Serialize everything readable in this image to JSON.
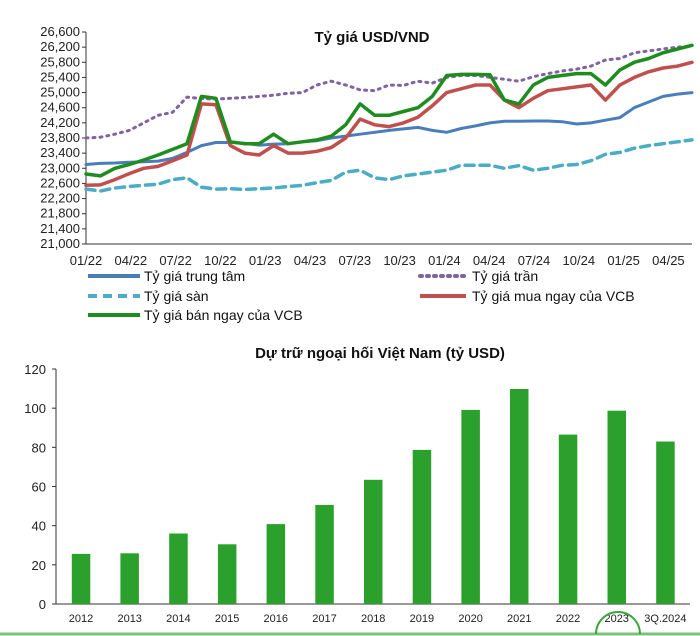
{
  "chart_data": [
    {
      "type": "line",
      "title": "Tỷ giá USD/VND",
      "x_tick_labels": [
        "01/22",
        "04/22",
        "07/22",
        "10/22",
        "01/23",
        "04/23",
        "07/23",
        "10/23",
        "01/24",
        "04/24",
        "07/24",
        "10/24",
        "01/25",
        "04/25"
      ],
      "y_tick_labels": [
        "21,000",
        "21,400",
        "21,800",
        "22,200",
        "22,600",
        "23,000",
        "23,400",
        "23,800",
        "24,200",
        "24,600",
        "25,000",
        "25,400",
        "25,800",
        "26,200",
        "26,600"
      ],
      "ylim": [
        21000,
        26600
      ],
      "grid": false,
      "legend_position": "bottom",
      "series": [
        {
          "name": "Tỷ giá trung tâm",
          "color": "#4a7ebb",
          "style": "solid",
          "values": [
            [
              0,
              23100
            ],
            [
              1,
              23130
            ],
            [
              2,
              23140
            ],
            [
              3,
              23160
            ],
            [
              4,
              23170
            ],
            [
              5,
              23190
            ],
            [
              6,
              23260
            ],
            [
              7,
              23420
            ],
            [
              8,
              23600
            ],
            [
              9,
              23680
            ],
            [
              10,
              23680
            ],
            [
              11,
              23660
            ],
            [
              12,
              23610
            ],
            [
              13,
              23640
            ],
            [
              14,
              23650
            ],
            [
              15,
              23700
            ],
            [
              16,
              23730
            ],
            [
              17,
              23800
            ],
            [
              18,
              23850
            ],
            [
              19,
              23900
            ],
            [
              20,
              23950
            ],
            [
              21,
              24000
            ],
            [
              22,
              24040
            ],
            [
              23,
              24080
            ],
            [
              24,
              24000
            ],
            [
              25,
              23950
            ],
            [
              26,
              24050
            ],
            [
              27,
              24120
            ],
            [
              28,
              24200
            ],
            [
              29,
              24240
            ],
            [
              30,
              24240
            ],
            [
              31,
              24250
            ],
            [
              32,
              24250
            ],
            [
              33,
              24230
            ],
            [
              34,
              24170
            ],
            [
              35,
              24200
            ],
            [
              36,
              24270
            ],
            [
              37,
              24340
            ],
            [
              38,
              24600
            ],
            [
              39,
              24750
            ],
            [
              40,
              24900
            ],
            [
              41,
              24960
            ],
            [
              42,
              25000
            ]
          ]
        },
        {
          "name": "Tỷ giá trần",
          "color": "#8064a2",
          "style": "dotted",
          "values": [
            [
              0,
              23800
            ],
            [
              1,
              23820
            ],
            [
              2,
              23900
            ],
            [
              3,
              24000
            ],
            [
              4,
              24200
            ],
            [
              5,
              24400
            ],
            [
              6,
              24480
            ],
            [
              7,
              24880
            ],
            [
              8,
              24840
            ],
            [
              9,
              24830
            ],
            [
              10,
              24850
            ],
            [
              11,
              24870
            ],
            [
              12,
              24900
            ],
            [
              13,
              24930
            ],
            [
              14,
              24980
            ],
            [
              15,
              25000
            ],
            [
              16,
              25200
            ],
            [
              17,
              25300
            ],
            [
              18,
              25200
            ],
            [
              19,
              25070
            ],
            [
              20,
              25050
            ],
            [
              21,
              25200
            ],
            [
              22,
              25190
            ],
            [
              23,
              25300
            ],
            [
              24,
              25250
            ],
            [
              25,
              25400
            ],
            [
              26,
              25450
            ],
            [
              27,
              25450
            ],
            [
              28,
              25400
            ],
            [
              29,
              25350
            ],
            [
              30,
              25300
            ],
            [
              31,
              25420
            ],
            [
              32,
              25500
            ],
            [
              33,
              25570
            ],
            [
              34,
              25620
            ],
            [
              35,
              25700
            ],
            [
              36,
              25860
            ],
            [
              37,
              25900
            ],
            [
              38,
              26050
            ],
            [
              39,
              26100
            ],
            [
              40,
              26150
            ],
            [
              41,
              26200
            ],
            [
              42,
              26220
            ]
          ]
        },
        {
          "name": "Tỷ giá sàn",
          "color": "#4bacc6",
          "style": "dashed",
          "values": [
            [
              0,
              22450
            ],
            [
              1,
              22400
            ],
            [
              2,
              22480
            ],
            [
              3,
              22520
            ],
            [
              4,
              22550
            ],
            [
              5,
              22580
            ],
            [
              6,
              22700
            ],
            [
              7,
              22750
            ],
            [
              8,
              22500
            ],
            [
              9,
              22450
            ],
            [
              10,
              22460
            ],
            [
              11,
              22440
            ],
            [
              12,
              22460
            ],
            [
              13,
              22480
            ],
            [
              14,
              22520
            ],
            [
              15,
              22550
            ],
            [
              16,
              22620
            ],
            [
              17,
              22680
            ],
            [
              18,
              22900
            ],
            [
              19,
              22950
            ],
            [
              20,
              22750
            ],
            [
              21,
              22700
            ],
            [
              22,
              22800
            ],
            [
              23,
              22850
            ],
            [
              24,
              22900
            ],
            [
              25,
              22950
            ],
            [
              26,
              23080
            ],
            [
              27,
              23080
            ],
            [
              28,
              23080
            ],
            [
              29,
              23000
            ],
            [
              30,
              23070
            ],
            [
              31,
              22950
            ],
            [
              32,
              23000
            ],
            [
              33,
              23080
            ],
            [
              34,
              23100
            ],
            [
              35,
              23200
            ],
            [
              36,
              23370
            ],
            [
              37,
              23420
            ],
            [
              38,
              23530
            ],
            [
              39,
              23600
            ],
            [
              40,
              23650
            ],
            [
              41,
              23700
            ],
            [
              42,
              23750
            ]
          ]
        },
        {
          "name": "Tỷ giá mua ngay của VCB",
          "color": "#c0504d",
          "style": "solid",
          "values": [
            [
              0,
              22550
            ],
            [
              1,
              22560
            ],
            [
              2,
              22700
            ],
            [
              3,
              22860
            ],
            [
              4,
              23000
            ],
            [
              5,
              23050
            ],
            [
              6,
              23200
            ],
            [
              7,
              23350
            ],
            [
              8,
              24700
            ],
            [
              9,
              24680
            ],
            [
              10,
              23600
            ],
            [
              11,
              23400
            ],
            [
              12,
              23350
            ],
            [
              13,
              23600
            ],
            [
              14,
              23400
            ],
            [
              15,
              23400
            ],
            [
              16,
              23450
            ],
            [
              17,
              23550
            ],
            [
              18,
              23800
            ],
            [
              19,
              24300
            ],
            [
              20,
              24150
            ],
            [
              21,
              24100
            ],
            [
              22,
              24200
            ],
            [
              23,
              24350
            ],
            [
              24,
              24650
            ],
            [
              25,
              25000
            ],
            [
              26,
              25100
            ],
            [
              27,
              25200
            ],
            [
              28,
              25200
            ],
            [
              29,
              24800
            ],
            [
              30,
              24600
            ],
            [
              31,
              24850
            ],
            [
              32,
              25050
            ],
            [
              33,
              25100
            ],
            [
              34,
              25150
            ],
            [
              35,
              25200
            ],
            [
              36,
              24800
            ],
            [
              37,
              25200
            ],
            [
              38,
              25400
            ],
            [
              39,
              25550
            ],
            [
              40,
              25650
            ],
            [
              41,
              25700
            ],
            [
              42,
              25800
            ]
          ]
        },
        {
          "name": "Tỷ giá bán ngay của VCB",
          "color": "#1e8c1e",
          "style": "solid",
          "values": [
            [
              0,
              22850
            ],
            [
              1,
              22800
            ],
            [
              2,
              23000
            ],
            [
              3,
              23100
            ],
            [
              4,
              23220
            ],
            [
              5,
              23350
            ],
            [
              6,
              23500
            ],
            [
              7,
              23650
            ],
            [
              8,
              24900
            ],
            [
              9,
              24850
            ],
            [
              10,
              23700
            ],
            [
              11,
              23650
            ],
            [
              12,
              23650
            ],
            [
              13,
              23900
            ],
            [
              14,
              23650
            ],
            [
              15,
              23700
            ],
            [
              16,
              23750
            ],
            [
              17,
              23850
            ],
            [
              18,
              24150
            ],
            [
              19,
              24700
            ],
            [
              20,
              24400
            ],
            [
              21,
              24400
            ],
            [
              22,
              24500
            ],
            [
              23,
              24600
            ],
            [
              24,
              24900
            ],
            [
              25,
              25450
            ],
            [
              26,
              25480
            ],
            [
              27,
              25480
            ],
            [
              28,
              25470
            ],
            [
              29,
              24800
            ],
            [
              30,
              24700
            ],
            [
              31,
              25200
            ],
            [
              32,
              25400
            ],
            [
              33,
              25450
            ],
            [
              34,
              25500
            ],
            [
              35,
              25500
            ],
            [
              36,
              25200
            ],
            [
              37,
              25600
            ],
            [
              38,
              25800
            ],
            [
              39,
              25900
            ],
            [
              40,
              26050
            ],
            [
              41,
              26150
            ],
            [
              42,
              26250
            ]
          ]
        }
      ]
    },
    {
      "type": "bar",
      "title": "Dự trữ ngoại hối Việt Nam (tỷ USD)",
      "categories": [
        "2012",
        "2013",
        "2014",
        "2015",
        "2016",
        "2017",
        "2018",
        "2019",
        "2020",
        "2021",
        "2022",
        "2023",
        "3Q.2024"
      ],
      "values": [
        25.6,
        25.9,
        36.0,
        30.5,
        40.8,
        50.6,
        63.4,
        78.7,
        99.1,
        109.8,
        86.5,
        98.7,
        83.0
      ],
      "y_tick_labels": [
        "0",
        "20",
        "40",
        "60",
        "80",
        "100",
        "120"
      ],
      "ylim": [
        0,
        120
      ],
      "color": "#2ca02c",
      "grid": false
    }
  ]
}
